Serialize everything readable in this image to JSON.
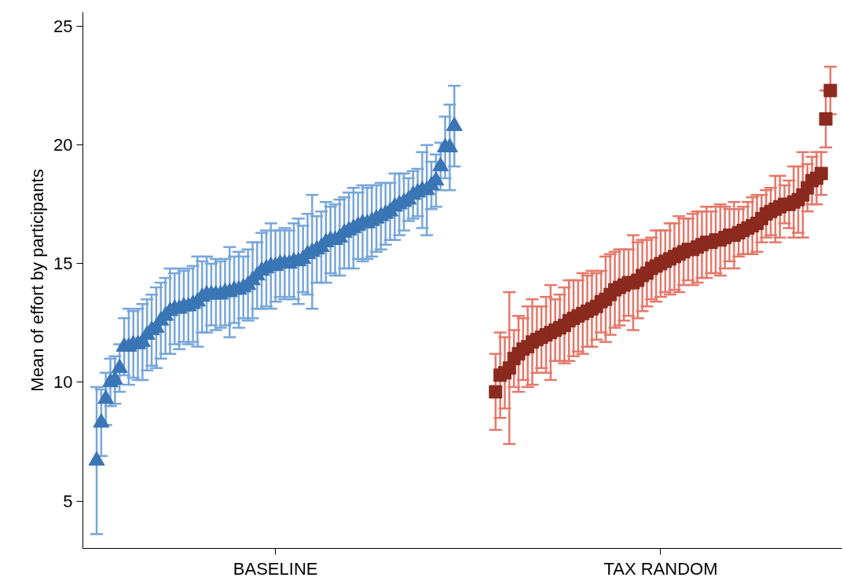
{
  "chart_data": {
    "type": "scatter",
    "ylabel": "Mean of effort by participants",
    "categories": [
      null,
      null,
      null,
      null,
      null,
      null,
      null,
      null,
      null,
      null,
      null,
      null,
      null,
      null,
      null,
      null,
      null,
      null,
      null,
      null,
      null,
      null,
      null,
      null,
      null,
      null,
      null,
      null,
      null,
      null,
      null,
      null,
      null,
      null,
      null,
      null,
      null,
      null,
      null,
      "BASELINE",
      null,
      null,
      null,
      null,
      null,
      null,
      null,
      null,
      null,
      null,
      null,
      null,
      null,
      null,
      null,
      null,
      null,
      null,
      null,
      null,
      null,
      null,
      null,
      null,
      null,
      null,
      null,
      null,
      null,
      null,
      null,
      null,
      null,
      null,
      null,
      null,
      null,
      null,
      null,
      null,
      null,
      null,
      null,
      null,
      null,
      null,
      null,
      null,
      null,
      null,
      null,
      null,
      null,
      null,
      null,
      null,
      null,
      null,
      null,
      null,
      null,
      null,
      null,
      null,
      null,
      null,
      null,
      null,
      null,
      null,
      null,
      null,
      null,
      null,
      null,
      null,
      null,
      null,
      null,
      null,
      null,
      null,
      null,
      "TAX RANDOM",
      null,
      null,
      null,
      null,
      null,
      null,
      null,
      null,
      null,
      null,
      null,
      null,
      null,
      null,
      null,
      null,
      null,
      null,
      null,
      null,
      null,
      null,
      null,
      null,
      null,
      null,
      null,
      null,
      null,
      null,
      null,
      null,
      null,
      null,
      null,
      null,
      null
    ],
    "ylim": [
      3,
      25.6
    ],
    "yticks": [
      5,
      10,
      15,
      20,
      25
    ],
    "grid": false,
    "series": [
      {
        "color": "#3a75b5",
        "marker": "triangle",
        "values": [
          6.7,
          8.3,
          9.3,
          10.0,
          10.1,
          10.6,
          11.5,
          11.5,
          11.6,
          11.6,
          11.7,
          12.0,
          12.2,
          12.3,
          12.6,
          12.8,
          13.0,
          13.1,
          13.1,
          13.2,
          13.2,
          13.3,
          13.4,
          13.6,
          13.7,
          13.7,
          13.7,
          13.7,
          13.8,
          13.8,
          13.9,
          13.9,
          14.0,
          14.1,
          14.3,
          14.5,
          14.7,
          14.8,
          14.9,
          14.9,
          15.0,
          15.0,
          15.0,
          15.1,
          15.1,
          15.2,
          15.4,
          15.5,
          15.6,
          15.7,
          15.9,
          16.0,
          16.0,
          16.1,
          16.3,
          16.4,
          16.5,
          16.6,
          16.7,
          16.7,
          16.8,
          16.9,
          17.0,
          17.1,
          17.2,
          17.4,
          17.5,
          17.6,
          17.7,
          17.9,
          18.0,
          18.1,
          18.1,
          18.3,
          18.5,
          19.1,
          19.9,
          19.9,
          20.8,
          null,
          null,
          null,
          null,
          null,
          null,
          null,
          null,
          null,
          null,
          null,
          null,
          null,
          null,
          null,
          null,
          null,
          null,
          null,
          null,
          null,
          null,
          null,
          null,
          null,
          null,
          null,
          null,
          null,
          null,
          null,
          null,
          null,
          null,
          null,
          null,
          null,
          null,
          null,
          null,
          null,
          null,
          null,
          null,
          null,
          null,
          null,
          null,
          null,
          null,
          null,
          null,
          null,
          null,
          null,
          null,
          null,
          null,
          null,
          null,
          null,
          null,
          null,
          null,
          null,
          null,
          null,
          null,
          null,
          null,
          null,
          null,
          null,
          null,
          null,
          null,
          null,
          null,
          null,
          null,
          null,
          null
        ],
        "errors": [
          3.1,
          1.4,
          1.1,
          1.0,
          1.0,
          1.0,
          1.2,
          1.6,
          1.4,
          1.5,
          1.6,
          1.5,
          1.5,
          1.7,
          1.6,
          1.6,
          1.8,
          1.5,
          1.7,
          1.5,
          1.6,
          1.6,
          1.9,
          1.5,
          1.6,
          1.3,
          1.5,
          1.4,
          1.4,
          1.9,
          1.4,
          1.6,
          1.3,
          1.5,
          1.6,
          1.4,
          1.6,
          1.6,
          1.8,
          1.5,
          1.4,
          1.5,
          1.4,
          1.6,
          1.8,
          1.4,
          1.7,
          2.4,
          1.4,
          1.5,
          1.7,
          1.4,
          1.5,
          1.6,
          1.5,
          1.6,
          1.7,
          1.4,
          1.6,
          1.5,
          1.5,
          1.4,
          1.4,
          1.3,
          1.2,
          1.4,
          1.3,
          1.2,
          0.9,
          1.0,
          1.0,
          1.6,
          1.9,
          1.0,
          1.1,
          1.0,
          1.3,
          1.8,
          1.7,
          null,
          null,
          null,
          null,
          null,
          null,
          null,
          null,
          null,
          null,
          null,
          null,
          null,
          null,
          null,
          null,
          null,
          null,
          null,
          null,
          null,
          null,
          null,
          null,
          null,
          null,
          null,
          null,
          null,
          null,
          null,
          null,
          null,
          null,
          null,
          null,
          null,
          null,
          null,
          null,
          null,
          null,
          null,
          null,
          null,
          null,
          null,
          null,
          null,
          null,
          null,
          null,
          null,
          null,
          null,
          null,
          null,
          null,
          null,
          null,
          null,
          null,
          null,
          null,
          null,
          null,
          null,
          null,
          null,
          null,
          null,
          null,
          null,
          null,
          null,
          null,
          null,
          null,
          null,
          null,
          null,
          null
        ]
      },
      {
        "color": "#8b2a1e",
        "marker": "square",
        "values": [
          null,
          null,
          null,
          null,
          null,
          null,
          null,
          null,
          null,
          null,
          null,
          null,
          null,
          null,
          null,
          null,
          null,
          null,
          null,
          null,
          null,
          null,
          null,
          null,
          null,
          null,
          null,
          null,
          null,
          null,
          null,
          null,
          null,
          null,
          null,
          null,
          null,
          null,
          null,
          null,
          null,
          null,
          null,
          null,
          null,
          null,
          null,
          null,
          null,
          null,
          null,
          null,
          null,
          null,
          null,
          null,
          null,
          null,
          null,
          null,
          null,
          null,
          null,
          null,
          null,
          null,
          null,
          null,
          null,
          null,
          null,
          null,
          null,
          null,
          null,
          null,
          null,
          null,
          null,
          null,
          null,
          null,
          null,
          null,
          null,
          null,
          null,
          9.6,
          10.3,
          10.4,
          10.6,
          11.0,
          11.2,
          11.4,
          11.5,
          11.7,
          11.8,
          11.9,
          12.0,
          12.1,
          12.2,
          12.3,
          12.4,
          12.6,
          12.7,
          12.8,
          12.9,
          13.0,
          13.1,
          13.2,
          13.4,
          13.5,
          13.7,
          13.9,
          14.0,
          14.1,
          14.2,
          14.2,
          14.3,
          14.5,
          14.6,
          14.8,
          14.9,
          15.0,
          15.1,
          15.2,
          15.3,
          15.4,
          15.5,
          15.6,
          15.6,
          15.7,
          15.8,
          15.9,
          15.9,
          16.0,
          16.0,
          16.1,
          16.2,
          16.2,
          16.3,
          16.4,
          16.5,
          16.6,
          16.7,
          16.9,
          17.1,
          17.2,
          17.3,
          17.4,
          17.5,
          17.5,
          17.6,
          17.7,
          17.9,
          18.2,
          18.5,
          18.6,
          18.8,
          21.1,
          22.3
        ],
        "errors": [
          null,
          null,
          null,
          null,
          null,
          null,
          null,
          null,
          null,
          null,
          null,
          null,
          null,
          null,
          null,
          null,
          null,
          null,
          null,
          null,
          null,
          null,
          null,
          null,
          null,
          null,
          null,
          null,
          null,
          null,
          null,
          null,
          null,
          null,
          null,
          null,
          null,
          null,
          null,
          null,
          null,
          null,
          null,
          null,
          null,
          null,
          null,
          null,
          null,
          null,
          null,
          null,
          null,
          null,
          null,
          null,
          null,
          null,
          null,
          null,
          null,
          null,
          null,
          null,
          null,
          null,
          null,
          null,
          null,
          null,
          null,
          null,
          null,
          null,
          null,
          null,
          null,
          null,
          null,
          null,
          null,
          null,
          null,
          null,
          null,
          null,
          null,
          1.6,
          1.8,
          1.5,
          3.2,
          1.2,
          1.6,
          1.3,
          1.7,
          1.8,
          1.4,
          1.3,
          1.6,
          2.0,
          1.3,
          1.4,
          1.6,
          1.7,
          1.6,
          1.5,
          1.7,
          1.5,
          1.6,
          1.4,
          1.3,
          1.8,
          1.7,
          1.6,
          1.6,
          1.5,
          1.4,
          2.0,
          1.6,
          1.5,
          1.4,
          1.3,
          1.5,
          1.4,
          1.3,
          1.5,
          1.4,
          1.6,
          1.4,
          1.3,
          1.5,
          1.5,
          1.4,
          1.5,
          1.3,
          1.4,
          1.5,
          1.3,
          1.1,
          1.4,
          1.0,
          1.0,
          1.1,
          1.2,
          1.2,
          1.0,
          1.0,
          1.0,
          1.4,
          1.3,
          0.8,
          1.0,
          1.5,
          1.4,
          1.8,
          1.0,
          1.0,
          1.1,
          0.9,
          1.2,
          1.0
        ]
      }
    ]
  }
}
